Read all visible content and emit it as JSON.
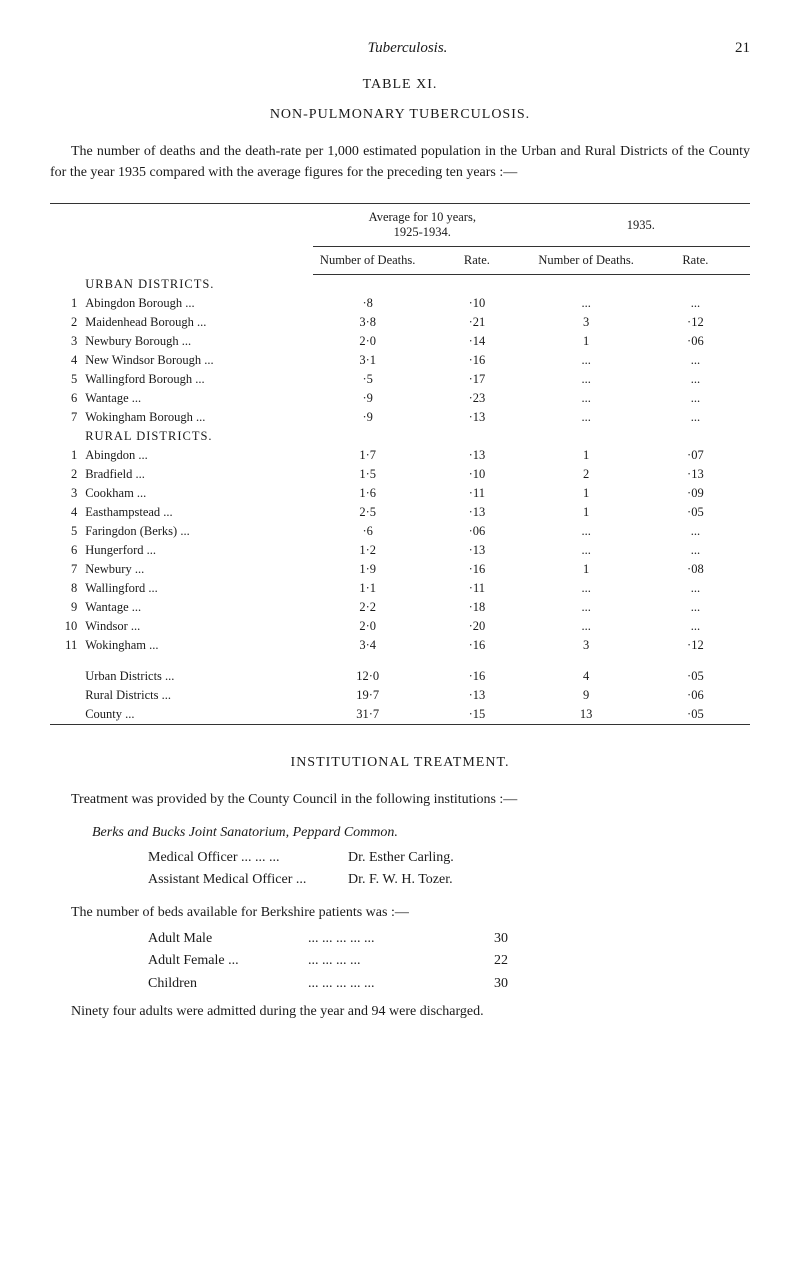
{
  "header": {
    "title": "Tuberculosis.",
    "page": "21"
  },
  "table_label": "TABLE XI.",
  "table_title": "NON-PULMONARY TUBERCULOSIS.",
  "intro": "The number of deaths and the death-rate per 1,000 estimated population in the Urban and Rural Districts of the County for the year 1935 compared with the average figures for the preceding ten years :—",
  "table": {
    "group_headers": {
      "g1": "Average for 10 years,\n1925-1934.",
      "g2": "1935."
    },
    "sub_headers": {
      "num1": "Number of Deaths.",
      "rate1": "Rate.",
      "num2": "Number of Deaths.",
      "rate2": "Rate."
    },
    "urban_label": "URBAN DISTRICTS.",
    "urban": [
      {
        "idx": "1",
        "name": "Abingdon Borough",
        "n1": "·8",
        "r1": "·10",
        "n2": "...",
        "r2": "..."
      },
      {
        "idx": "2",
        "name": "Maidenhead Borough",
        "n1": "3·8",
        "r1": "·21",
        "n2": "3",
        "r2": "·12"
      },
      {
        "idx": "3",
        "name": "Newbury Borough",
        "n1": "2·0",
        "r1": "·14",
        "n2": "1",
        "r2": "·06"
      },
      {
        "idx": "4",
        "name": "New Windsor Borough",
        "n1": "3·1",
        "r1": "·16",
        "n2": "...",
        "r2": "..."
      },
      {
        "idx": "5",
        "name": "Wallingford Borough",
        "n1": "·5",
        "r1": "·17",
        "n2": "...",
        "r2": "..."
      },
      {
        "idx": "6",
        "name": "Wantage",
        "n1": "·9",
        "r1": "·23",
        "n2": "...",
        "r2": "..."
      },
      {
        "idx": "7",
        "name": "Wokingham Borough",
        "n1": "·9",
        "r1": "·13",
        "n2": "...",
        "r2": "..."
      }
    ],
    "rural_label": "RURAL DISTRICTS.",
    "rural": [
      {
        "idx": "1",
        "name": "Abingdon",
        "n1": "1·7",
        "r1": "·13",
        "n2": "1",
        "r2": "·07"
      },
      {
        "idx": "2",
        "name": "Bradfield",
        "n1": "1·5",
        "r1": "·10",
        "n2": "2",
        "r2": "·13"
      },
      {
        "idx": "3",
        "name": "Cookham",
        "n1": "1·6",
        "r1": "·11",
        "n2": "1",
        "r2": "·09"
      },
      {
        "idx": "4",
        "name": "Easthampstead",
        "n1": "2·5",
        "r1": "·13",
        "n2": "1",
        "r2": "·05"
      },
      {
        "idx": "5",
        "name": "Faringdon (Berks)",
        "n1": "·6",
        "r1": "·06",
        "n2": "...",
        "r2": "..."
      },
      {
        "idx": "6",
        "name": "Hungerford",
        "n1": "1·2",
        "r1": "·13",
        "n2": "...",
        "r2": "..."
      },
      {
        "idx": "7",
        "name": "Newbury",
        "n1": "1·9",
        "r1": "·16",
        "n2": "1",
        "r2": "·08"
      },
      {
        "idx": "8",
        "name": "Wallingford",
        "n1": "1·1",
        "r1": "·11",
        "n2": "...",
        "r2": "..."
      },
      {
        "idx": "9",
        "name": "Wantage",
        "n1": "2·2",
        "r1": "·18",
        "n2": "...",
        "r2": "..."
      },
      {
        "idx": "10",
        "name": "Windsor",
        "n1": "2·0",
        "r1": "·20",
        "n2": "...",
        "r2": "..."
      },
      {
        "idx": "11",
        "name": "Wokingham",
        "n1": "3·4",
        "r1": "·16",
        "n2": "3",
        "r2": "·12"
      }
    ],
    "summary": [
      {
        "name": "Urban Districts",
        "n1": "12·0",
        "r1": "·16",
        "n2": "4",
        "r2": "·05"
      },
      {
        "name": "Rural Districts",
        "n1": "19·7",
        "r1": "·13",
        "n2": "9",
        "r2": "·06"
      },
      {
        "name": "County",
        "n1": "31·7",
        "r1": "·15",
        "n2": "13",
        "r2": "·05"
      }
    ]
  },
  "inst_heading": "INSTITUTIONAL TREATMENT.",
  "inst_para": "Treatment was provided by the County Council in the following institutions :—",
  "sanatorium_line": "Berks and Bucks Joint Sanatorium, Peppard Common.",
  "officers": [
    {
      "role": "Medical Officer ...   ...   ...",
      "name": "Dr. Esther Carling."
    },
    {
      "role": "Assistant Medical Officer   ...",
      "name": "Dr. F. W. H. Tozer."
    }
  ],
  "beds_intro": "The number of beds available for Berkshire patients was :—",
  "beds": [
    {
      "label": "Adult Male",
      "dots": "...   ...   ...   ...   ...",
      "count": "30"
    },
    {
      "label": "Adult Female ...",
      "dots": "...   ...   ...   ...",
      "count": "22"
    },
    {
      "label": "Children",
      "dots": "...   ...   ...   ...   ...",
      "count": "30"
    }
  ],
  "closing": "Ninety four adults were admitted during the year and 94 were discharged."
}
